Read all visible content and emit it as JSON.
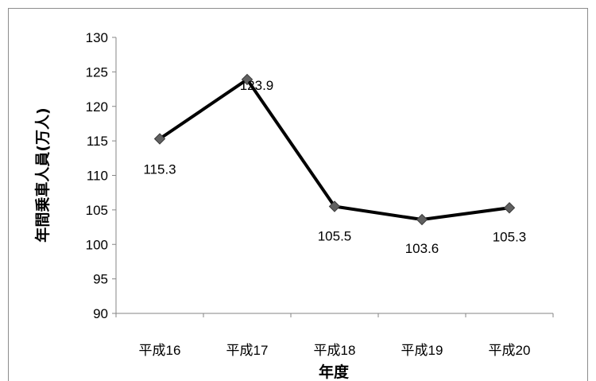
{
  "chart_data": {
    "type": "line",
    "categories": [
      "平成16",
      "平成17",
      "平成18",
      "平成19",
      "平成20"
    ],
    "series": [
      {
        "values": [
          115.3,
          123.9,
          105.5,
          103.6,
          105.3
        ]
      }
    ],
    "data_labels": [
      "115.3",
      "123.9",
      "105.5",
      "103.6",
      "105.3"
    ],
    "xlabel": "年度",
    "ylabel": "年間乗車人員(万人)",
    "ylim": [
      90,
      130
    ],
    "y_ticks": [
      "90",
      "95",
      "100",
      "105",
      "110",
      "115",
      "120",
      "125",
      "130"
    ],
    "grid": false,
    "legend": "none",
    "line_color": "#000000",
    "marker_color": "#606060"
  }
}
